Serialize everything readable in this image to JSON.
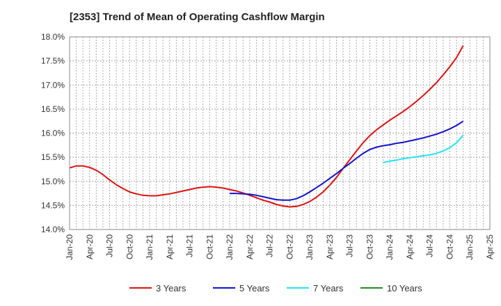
{
  "chart_data": {
    "type": "line",
    "title": "[2353]  Trend of Mean of Operating Cashflow Margin",
    "xlabel": "",
    "ylabel": "",
    "x_ticks": [
      "Jan-20",
      "Apr-20",
      "Jul-20",
      "Oct-20",
      "Jan-21",
      "Apr-21",
      "Jul-21",
      "Oct-21",
      "Jan-22",
      "Apr-22",
      "Jul-22",
      "Oct-22",
      "Jan-23",
      "Apr-23",
      "Jul-23",
      "Oct-23",
      "Jan-24",
      "Apr-24",
      "Jul-24",
      "Oct-24",
      "Jan-25",
      "Apr-25"
    ],
    "y_ticks": [
      "14.0%",
      "14.5%",
      "15.0%",
      "15.5%",
      "16.0%",
      "16.5%",
      "17.0%",
      "17.5%",
      "18.0%"
    ],
    "ylim": [
      14.0,
      18.0
    ],
    "grid": true,
    "legend_position": "bottom",
    "series": [
      {
        "name": "3 Years",
        "color": "#dd1111",
        "points": [
          [
            "Jan-20",
            15.28
          ],
          [
            "Feb-20",
            15.32
          ],
          [
            "Mar-20",
            15.32
          ],
          [
            "Apr-20",
            15.29
          ],
          [
            "May-20",
            15.23
          ],
          [
            "Jun-20",
            15.14
          ],
          [
            "Jul-20",
            15.03
          ],
          [
            "Aug-20",
            14.93
          ],
          [
            "Sep-20",
            14.85
          ],
          [
            "Oct-20",
            14.78
          ],
          [
            "Nov-20",
            14.74
          ],
          [
            "Dec-20",
            14.71
          ],
          [
            "Jan-21",
            14.7
          ],
          [
            "Feb-21",
            14.7
          ],
          [
            "Mar-21",
            14.72
          ],
          [
            "Apr-21",
            14.74
          ],
          [
            "May-21",
            14.77
          ],
          [
            "Jun-21",
            14.8
          ],
          [
            "Jul-21",
            14.83
          ],
          [
            "Aug-21",
            14.86
          ],
          [
            "Sep-21",
            14.88
          ],
          [
            "Oct-21",
            14.89
          ],
          [
            "Nov-21",
            14.88
          ],
          [
            "Dec-21",
            14.86
          ],
          [
            "Jan-22",
            14.83
          ],
          [
            "Feb-22",
            14.8
          ],
          [
            "Mar-22",
            14.76
          ],
          [
            "Apr-22",
            14.71
          ],
          [
            "May-22",
            14.66
          ],
          [
            "Jun-22",
            14.61
          ],
          [
            "Jul-22",
            14.57
          ],
          [
            "Aug-22",
            14.52
          ],
          [
            "Sep-22",
            14.49
          ],
          [
            "Oct-22",
            14.47
          ],
          [
            "Nov-22",
            14.48
          ],
          [
            "Dec-22",
            14.52
          ],
          [
            "Jan-23",
            14.58
          ],
          [
            "Feb-23",
            14.67
          ],
          [
            "Mar-23",
            14.78
          ],
          [
            "Apr-23",
            14.92
          ],
          [
            "May-23",
            15.08
          ],
          [
            "Jun-23",
            15.27
          ],
          [
            "Jul-23",
            15.45
          ],
          [
            "Aug-23",
            15.63
          ],
          [
            "Sep-23",
            15.8
          ],
          [
            "Oct-23",
            15.95
          ],
          [
            "Nov-23",
            16.07
          ],
          [
            "Dec-23",
            16.17
          ],
          [
            "Jan-24",
            16.27
          ],
          [
            "Feb-24",
            16.36
          ],
          [
            "Mar-24",
            16.45
          ],
          [
            "Apr-24",
            16.55
          ],
          [
            "May-24",
            16.66
          ],
          [
            "Jun-24",
            16.78
          ],
          [
            "Jul-24",
            16.91
          ],
          [
            "Aug-24",
            17.05
          ],
          [
            "Sep-24",
            17.21
          ],
          [
            "Oct-24",
            17.38
          ],
          [
            "Nov-24",
            17.57
          ],
          [
            "Dec-24",
            17.82
          ]
        ]
      },
      {
        "name": "5 Years",
        "color": "#1111cc",
        "points": [
          [
            "Jan-22",
            14.75
          ],
          [
            "Feb-22",
            14.75
          ],
          [
            "Mar-22",
            14.74
          ],
          [
            "Apr-22",
            14.73
          ],
          [
            "May-22",
            14.71
          ],
          [
            "Jun-22",
            14.68
          ],
          [
            "Jul-22",
            14.65
          ],
          [
            "Aug-22",
            14.62
          ],
          [
            "Sep-22",
            14.61
          ],
          [
            "Oct-22",
            14.61
          ],
          [
            "Nov-22",
            14.64
          ],
          [
            "Dec-22",
            14.7
          ],
          [
            "Jan-23",
            14.78
          ],
          [
            "Feb-23",
            14.87
          ],
          [
            "Mar-23",
            14.96
          ],
          [
            "Apr-23",
            15.06
          ],
          [
            "May-23",
            15.16
          ],
          [
            "Jun-23",
            15.27
          ],
          [
            "Jul-23",
            15.37
          ],
          [
            "Aug-23",
            15.48
          ],
          [
            "Sep-23",
            15.58
          ],
          [
            "Oct-23",
            15.66
          ],
          [
            "Nov-23",
            15.71
          ],
          [
            "Dec-23",
            15.74
          ],
          [
            "Jan-24",
            15.76
          ],
          [
            "Feb-24",
            15.79
          ],
          [
            "Mar-24",
            15.81
          ],
          [
            "Apr-24",
            15.84
          ],
          [
            "May-24",
            15.87
          ],
          [
            "Jun-24",
            15.9
          ],
          [
            "Jul-24",
            15.94
          ],
          [
            "Aug-24",
            15.98
          ],
          [
            "Sep-24",
            16.03
          ],
          [
            "Oct-24",
            16.09
          ],
          [
            "Nov-24",
            16.16
          ],
          [
            "Dec-24",
            16.25
          ]
        ]
      },
      {
        "name": "7 Years",
        "color": "#22e5ee",
        "points": [
          [
            "Dec-23",
            15.39
          ],
          [
            "Jan-24",
            15.42
          ],
          [
            "Feb-24",
            15.44
          ],
          [
            "Mar-24",
            15.47
          ],
          [
            "Apr-24",
            15.49
          ],
          [
            "May-24",
            15.51
          ],
          [
            "Jun-24",
            15.53
          ],
          [
            "Jul-24",
            15.55
          ],
          [
            "Aug-24",
            15.58
          ],
          [
            "Sep-24",
            15.63
          ],
          [
            "Oct-24",
            15.7
          ],
          [
            "Nov-24",
            15.8
          ],
          [
            "Dec-24",
            15.96
          ]
        ]
      },
      {
        "name": "10 Years",
        "color": "#228822",
        "points": []
      }
    ]
  }
}
